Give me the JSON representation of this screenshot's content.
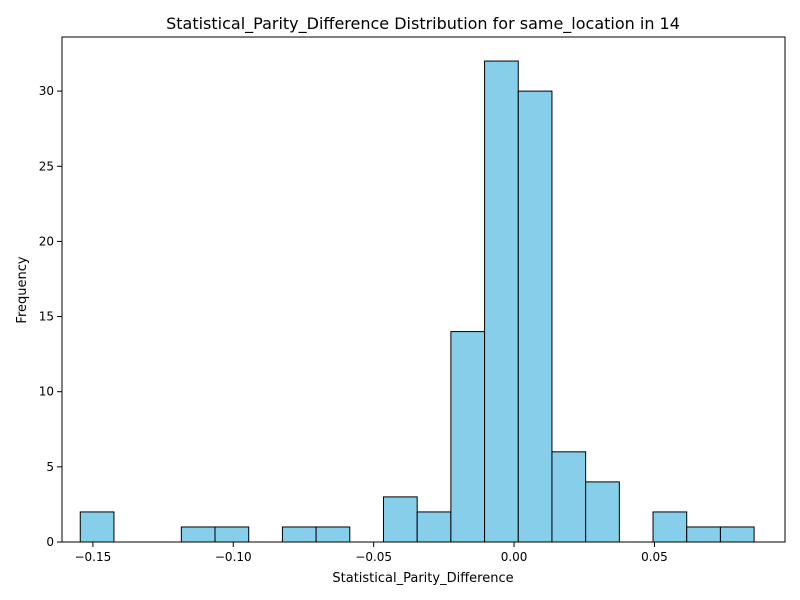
{
  "chart_data": {
    "type": "bar",
    "title": "Statistical_Parity_Difference Distribution for same_location in 14",
    "xlabel": "Statistical_Parity_Difference",
    "ylabel": "Frequency",
    "xlim": [
      -0.161,
      0.0965
    ],
    "ylim": [
      0,
      33.6
    ],
    "grid": false,
    "bar_color": "#87CEEB",
    "edge_color": "#000000",
    "bin_edges": [
      -0.1545,
      -0.1425,
      -0.1305,
      -0.1185,
      -0.1065,
      -0.0945,
      -0.0825,
      -0.0705,
      -0.0585,
      -0.0465,
      -0.0345,
      -0.0225,
      -0.0105,
      0.0015,
      0.0135,
      0.0255,
      0.0375,
      0.0495,
      0.0615,
      0.0735,
      0.0855
    ],
    "values": [
      2,
      0,
      0,
      1,
      1,
      0,
      1,
      1,
      0,
      3,
      2,
      14,
      32,
      30,
      6,
      4,
      0,
      2,
      1,
      1
    ],
    "x_ticks": [
      {
        "value": -0.15,
        "label": "−0.15"
      },
      {
        "value": -0.1,
        "label": "−0.10"
      },
      {
        "value": -0.05,
        "label": "−0.05"
      },
      {
        "value": 0.0,
        "label": "0.00"
      },
      {
        "value": 0.05,
        "label": "0.05"
      }
    ],
    "y_ticks": [
      {
        "value": 0,
        "label": "0"
      },
      {
        "value": 5,
        "label": "5"
      },
      {
        "value": 10,
        "label": "10"
      },
      {
        "value": 15,
        "label": "15"
      },
      {
        "value": 20,
        "label": "20"
      },
      {
        "value": 25,
        "label": "25"
      },
      {
        "value": 30,
        "label": "30"
      }
    ]
  }
}
